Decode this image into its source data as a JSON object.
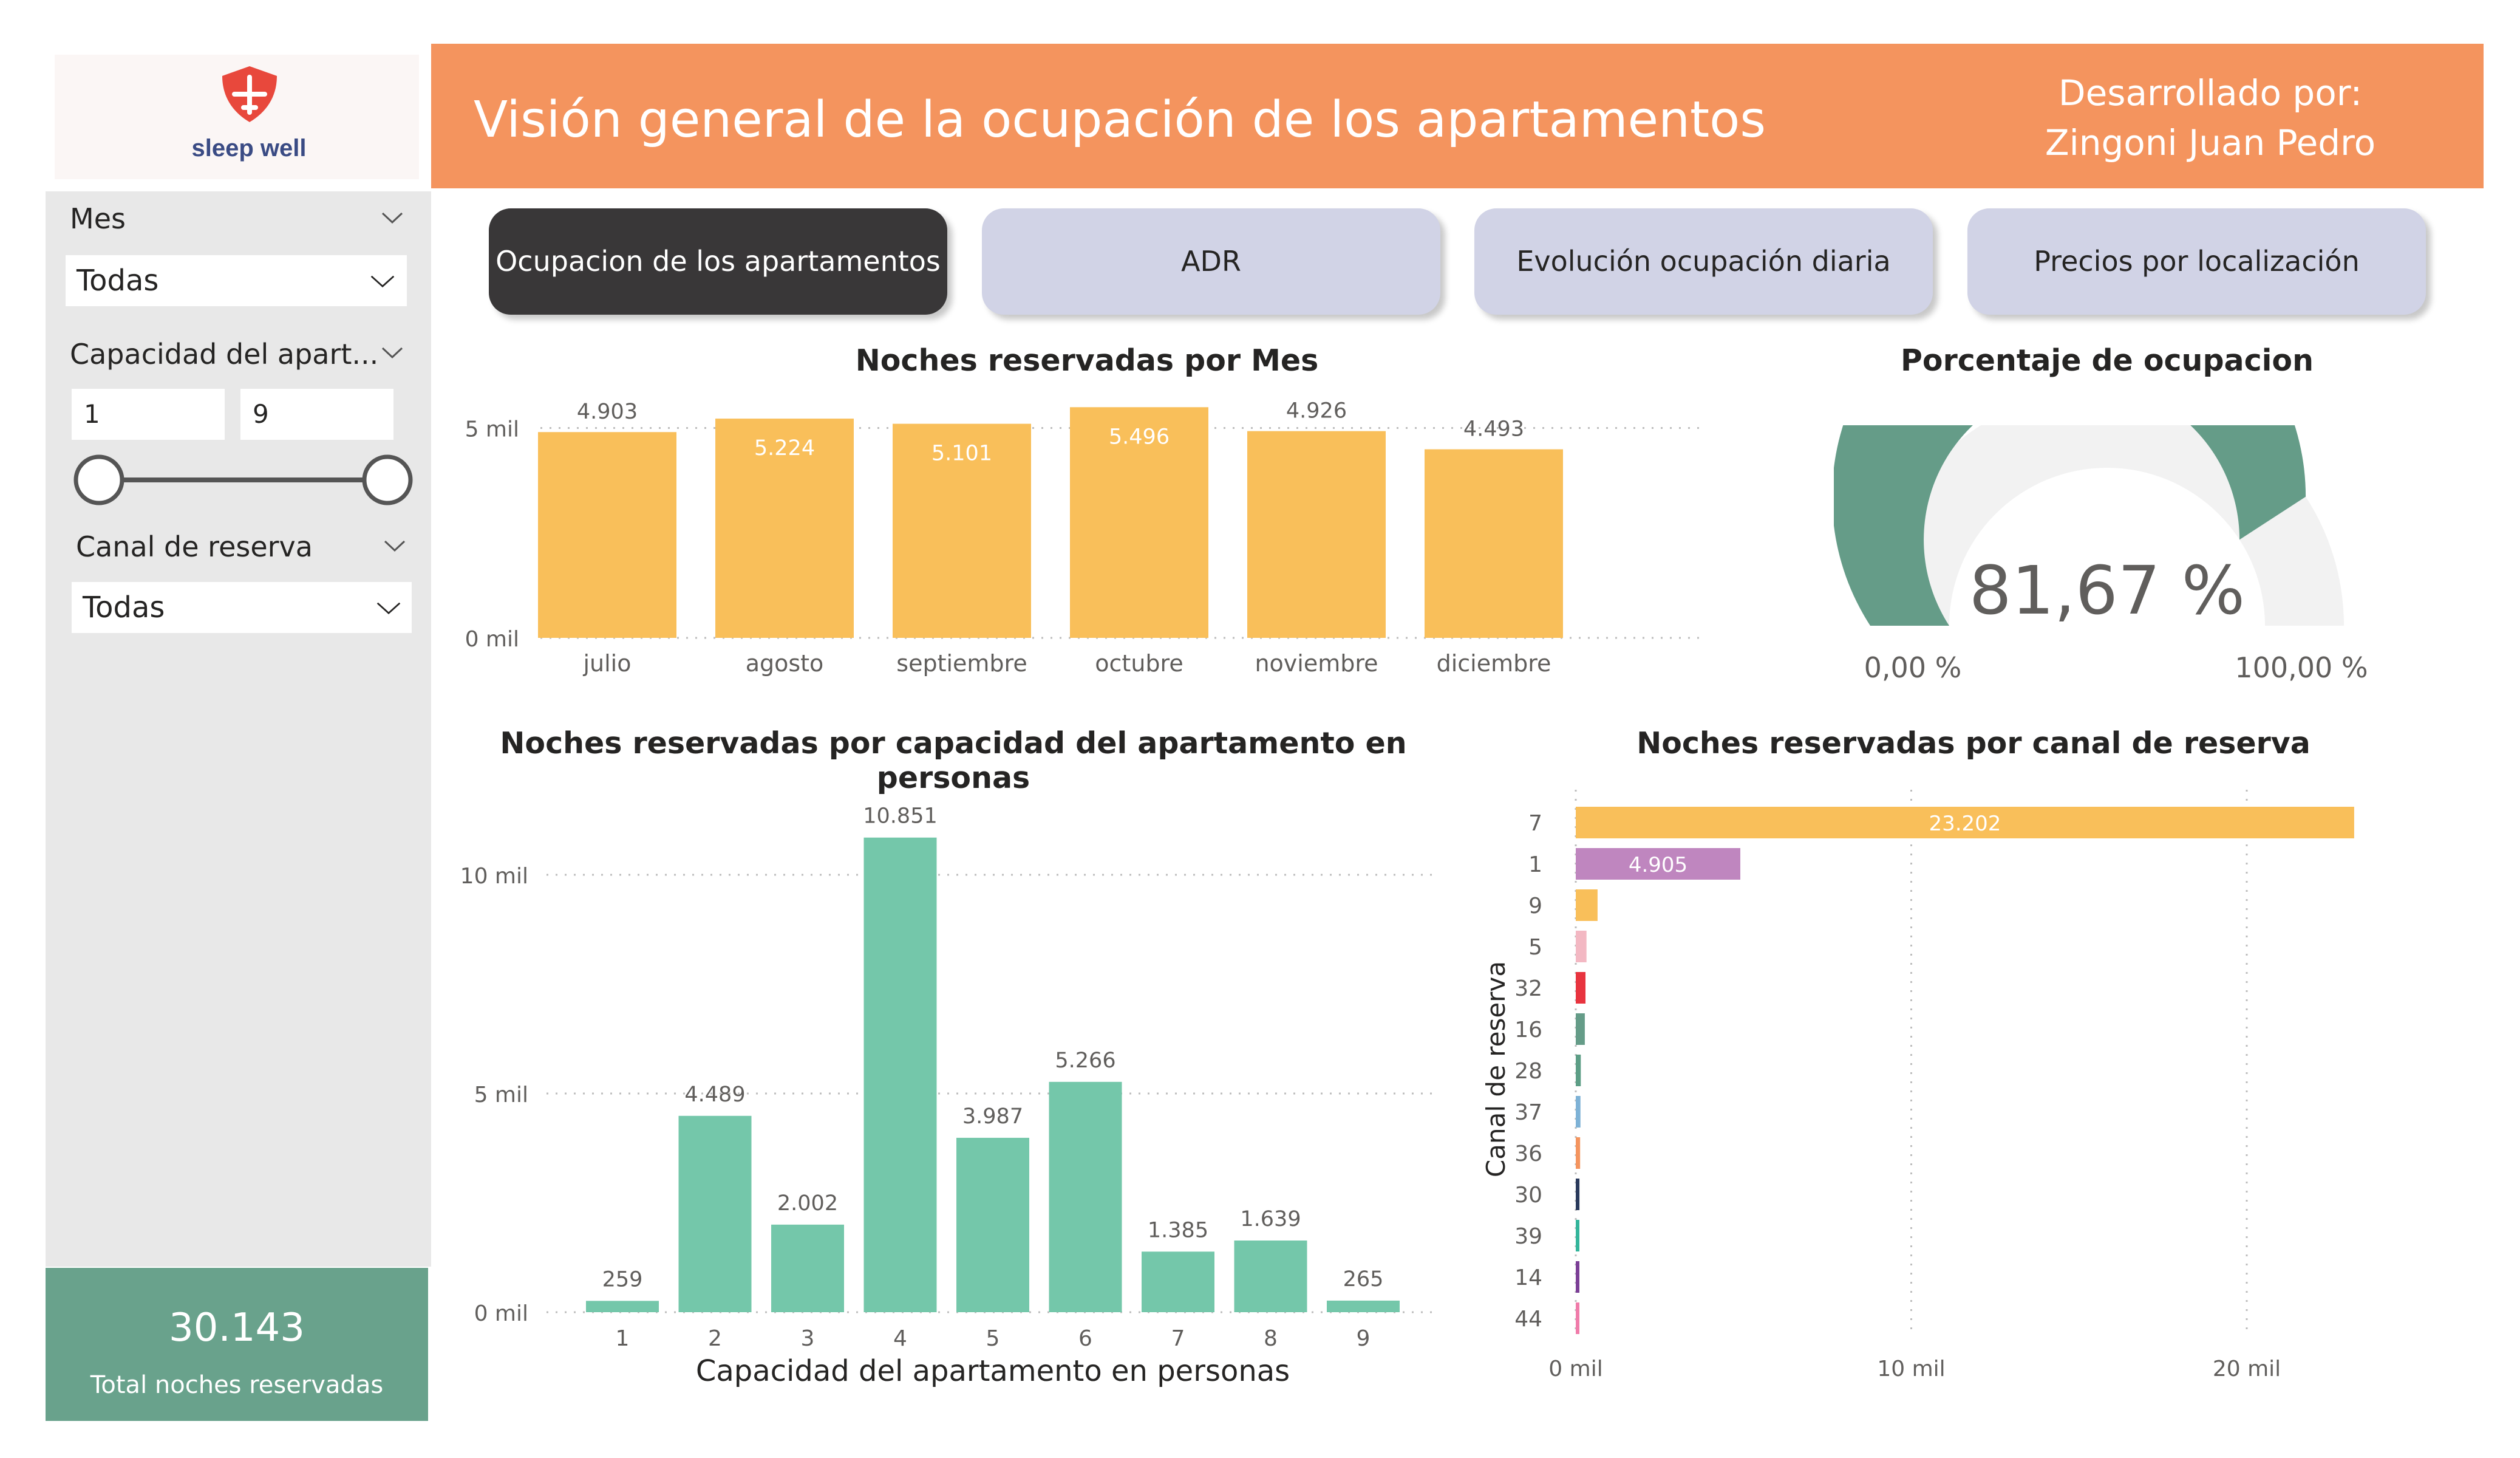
{
  "brand": {
    "name": "sleep well",
    "accent": "#e8483c",
    "text_color": "#3a4b84"
  },
  "header": {
    "title": "Visión general de la ocupación de los apartamentos",
    "dev_label": "Desarrollado por:",
    "dev_name": "Zingoni Juan Pedro",
    "color": "#f4945e"
  },
  "filters": {
    "mes": {
      "label": "Mes",
      "value": "Todas"
    },
    "capacidad": {
      "label": "Capacidad del apart...",
      "min": "1",
      "max": "9",
      "range": [
        1,
        9
      ]
    },
    "canal": {
      "label": "Canal de reserva",
      "value": "Todas"
    }
  },
  "kpi": {
    "value": "30.143",
    "label": "Total noches reservadas",
    "color": "#69a28c"
  },
  "nav": {
    "buttons": [
      {
        "label": "Ocupacion de los apartamentos",
        "active": true
      },
      {
        "label": "ADR",
        "active": false
      },
      {
        "label": "Evolución ocupación diaria",
        "active": false
      },
      {
        "label": "Precios por localización",
        "active": false
      }
    ]
  },
  "chart_data": [
    {
      "type": "bar",
      "title": "Noches reservadas por Mes",
      "categories": [
        "julio",
        "agosto",
        "septiembre",
        "octubre",
        "noviembre",
        "diciembre"
      ],
      "values": [
        4903,
        5224,
        5101,
        5496,
        4926,
        4493
      ],
      "labels": [
        "4.903",
        "5.224",
        "5.101",
        "5.496",
        "4.926",
        "4.493"
      ],
      "yticks": [
        "0 mil",
        "5 mil"
      ],
      "ylim": [
        0,
        5500
      ],
      "color": "#f9bf5a",
      "grid": true
    },
    {
      "type": "gauge",
      "title": "Porcentaje de ocupacion",
      "value": 81.67,
      "value_label": "81,67 %",
      "min_label": "0,00 %",
      "max_label": "100,00 %",
      "range": [
        0,
        100
      ],
      "color": "#659c88",
      "track_color": "#f2f2f2"
    },
    {
      "type": "bar",
      "title": "Noches reservadas por capacidad del apartamento en personas",
      "xlabel": "Capacidad del apartamento en personas",
      "categories": [
        "1",
        "2",
        "3",
        "4",
        "5",
        "6",
        "7",
        "8",
        "9"
      ],
      "values": [
        259,
        4489,
        2002,
        10851,
        3987,
        5266,
        1385,
        1639,
        265
      ],
      "labels": [
        "259",
        "4.489",
        "2.002",
        "10.851",
        "3.987",
        "5.266",
        "1.385",
        "1.639",
        "265"
      ],
      "yticks": [
        "0 mil",
        "5 mil",
        "10 mil"
      ],
      "ylim": [
        0,
        11000
      ],
      "color": "#74c7aa",
      "grid": true
    },
    {
      "type": "bar",
      "orientation": "horizontal",
      "title": "Noches reservadas por canal de reserva",
      "ylabel": "Canal de reserva",
      "categories": [
        "7",
        "1",
        "9",
        "5",
        "32",
        "16",
        "28",
        "37",
        "36",
        "30",
        "39",
        "14",
        "44"
      ],
      "values": [
        23202,
        4905,
        650,
        320,
        290,
        270,
        150,
        140,
        130,
        110,
        80,
        70,
        40
      ],
      "labels": [
        "23.202",
        "4.905",
        "",
        "",
        "",
        "",
        "",
        "",
        "",
        "",
        "",
        "",
        ""
      ],
      "colors": [
        "#f9bf5a",
        "#bf86bf",
        "#f9bf5a",
        "#f3b8c3",
        "#e8343f",
        "#659c88",
        "#5d9e86",
        "#7eb2d6",
        "#f4945e",
        "#2a3a5c",
        "#33b59b",
        "#7b3f96",
        "#f07caa"
      ],
      "xticks": [
        "0 mil",
        "10 mil",
        "20 mil"
      ],
      "xlim": [
        0,
        23500
      ],
      "grid": true
    }
  ]
}
